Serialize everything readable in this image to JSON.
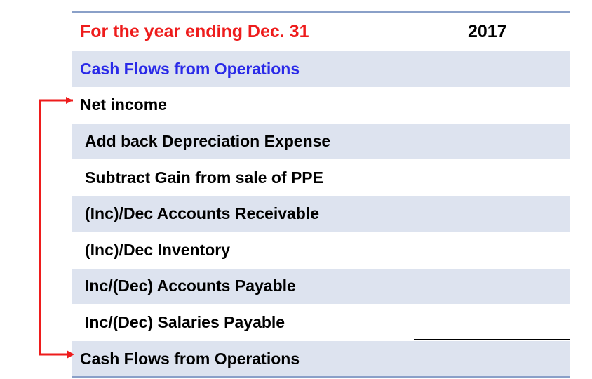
{
  "header": {
    "title": "For the year ending Dec. 31",
    "year": "2017"
  },
  "section_title": "Cash Flows from Operations",
  "rows": [
    {
      "label": "Net income"
    },
    {
      "label": "Add back Depreciation Expense"
    },
    {
      "label": "Subtract Gain from sale of PPE"
    },
    {
      "label": "(Inc)/Dec Accounts Receivable"
    },
    {
      "label": "(Inc)/Dec Inventory"
    },
    {
      "label": "Inc/(Dec) Accounts Payable"
    },
    {
      "label": "Inc/(Dec) Salaries Payable"
    }
  ],
  "total_label": "Cash Flows from Operations",
  "colors": {
    "header_text": "#ee1c1c",
    "section_text": "#2a2ae8",
    "row_shade": "#dde3ef",
    "rule": "#8aa0c8",
    "arrow": "#ee1c1c"
  }
}
